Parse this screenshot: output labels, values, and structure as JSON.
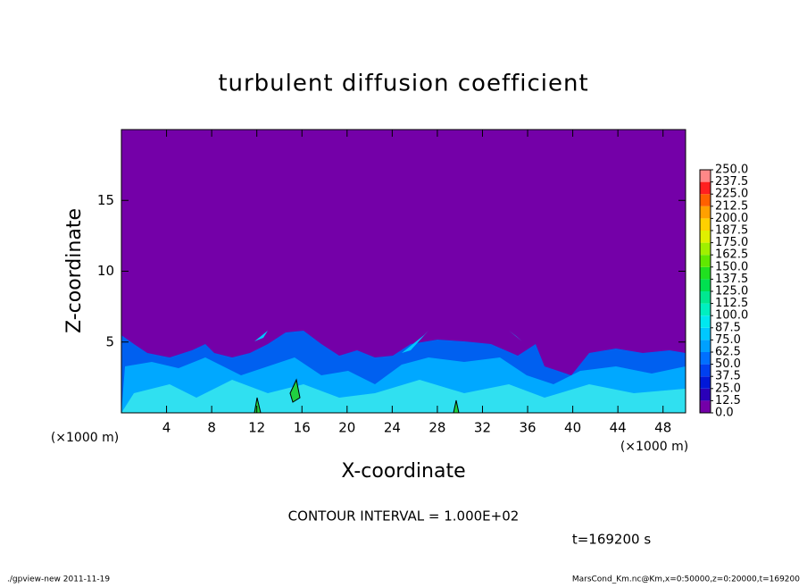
{
  "chart_data": {
    "type": "contour",
    "title": "turbulent diffusion coefficient",
    "xlabel": "X-coordinate",
    "ylabel": "Z-coordinate",
    "xunit": "(×1000 m)",
    "yunit": "(×1000 m)",
    "xlim": [
      0,
      50
    ],
    "ylim": [
      0,
      20
    ],
    "xticks": [
      4,
      8,
      12,
      16,
      20,
      24,
      28,
      32,
      36,
      40,
      44,
      48
    ],
    "yticks": [
      5,
      10,
      15
    ],
    "colorbar": {
      "levels": [
        {
          "value": 0,
          "label": "0.0"
        },
        12.5,
        {
          "value": 25,
          "label": "25.0"
        },
        37.5,
        {
          "value": 50,
          "label": "50.0"
        },
        62.5,
        {
          "value": 75,
          "label": "75.0"
        },
        87.5,
        {
          "value": 100,
          "label": "100.0"
        },
        112.5,
        {
          "value": 125,
          "label": "125.0"
        },
        137.5,
        {
          "value": 150,
          "label": "150.0"
        },
        162.5,
        {
          "value": 175,
          "label": "175.0"
        },
        187.5,
        {
          "value": 200,
          "label": "200.0"
        },
        212.5,
        {
          "value": 225,
          "label": "225.0"
        },
        237.5,
        {
          "value": 250,
          "label": "250.0"
        }
      ],
      "colors": [
        "#7400a8",
        "#2a00b8",
        "#0018d8",
        "#0040f0",
        "#0070ff",
        "#00a0ff",
        "#00c8ff",
        "#00e8f0",
        "#00f0c0",
        "#00e890",
        "#00e050",
        "#20e020",
        "#60e800",
        "#a0f000",
        "#e0f000",
        "#ffd000",
        "#ffa000",
        "#ff6000",
        "#ff2020",
        "#ff8888"
      ]
    },
    "annotations": [
      "CONTOUR INTERVAL = 1.000E+02",
      "t=169200 s"
    ],
    "footer_left": "./gpview-new  2011-11-19",
    "footer_right": "MarsCond_Km.nc@Km,x=0:50000,z=0:20000,t=169200"
  }
}
